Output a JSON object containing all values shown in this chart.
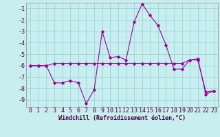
{
  "xlabel": "Windchill (Refroidissement éolien,°C)",
  "bg_color": "#c8eef0",
  "grid_color": "#a0d8dc",
  "line_color": "#990099",
  "x_hours": [
    0,
    1,
    2,
    3,
    4,
    5,
    6,
    7,
    8,
    9,
    10,
    11,
    12,
    13,
    14,
    15,
    16,
    17,
    18,
    19,
    20,
    21,
    22,
    23
  ],
  "line1_y": [
    -6.0,
    -6.0,
    -6.0,
    -5.8,
    -5.8,
    -5.8,
    -5.8,
    -5.8,
    -5.8,
    -5.8,
    -5.8,
    -5.8,
    -5.8,
    -5.8,
    -5.8,
    -5.8,
    -5.8,
    -5.8,
    -5.8,
    -5.8,
    -5.5,
    -5.5,
    -8.3,
    -8.2
  ],
  "line2_y": [
    -6.0,
    -6.0,
    -6.0,
    -7.5,
    -7.5,
    -7.3,
    -7.5,
    -9.3,
    -8.1,
    -3.0,
    -5.3,
    -5.2,
    -5.5,
    -2.2,
    -0.6,
    -1.6,
    -2.5,
    -4.2,
    -6.3,
    -6.3,
    -5.5,
    -5.4,
    -8.5,
    -8.2
  ],
  "ylim": [
    -9.6,
    -0.5
  ],
  "xlim": [
    -0.5,
    23.5
  ],
  "yticks": [
    -9,
    -8,
    -7,
    -6,
    -5,
    -4,
    -3,
    -2,
    -1
  ],
  "xticks": [
    0,
    1,
    2,
    3,
    4,
    5,
    6,
    7,
    8,
    9,
    10,
    11,
    12,
    13,
    14,
    15,
    16,
    17,
    18,
    19,
    20,
    21,
    22,
    23
  ],
  "tick_fontsize": 6,
  "label_fontsize": 6
}
